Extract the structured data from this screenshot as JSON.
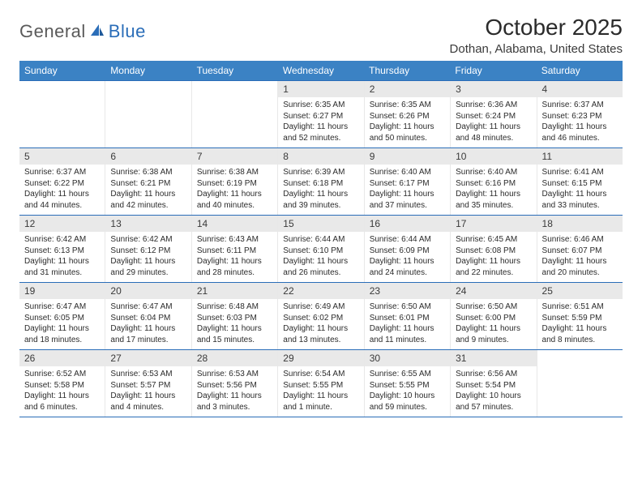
{
  "logo": {
    "text1": "General",
    "text2": "Blue"
  },
  "title": "October 2025",
  "location": "Dothan, Alabama, United States",
  "colors": {
    "header_bg": "#3b82c4",
    "header_border": "#2a6db8",
    "daynum_bg": "#e9e9e9",
    "text": "#2b2b2b"
  },
  "daysOfWeek": [
    "Sunday",
    "Monday",
    "Tuesday",
    "Wednesday",
    "Thursday",
    "Friday",
    "Saturday"
  ],
  "weeks": [
    [
      null,
      null,
      null,
      {
        "n": "1",
        "sr": "Sunrise: 6:35 AM",
        "ss": "Sunset: 6:27 PM",
        "dl": "Daylight: 11 hours and 52 minutes."
      },
      {
        "n": "2",
        "sr": "Sunrise: 6:35 AM",
        "ss": "Sunset: 6:26 PM",
        "dl": "Daylight: 11 hours and 50 minutes."
      },
      {
        "n": "3",
        "sr": "Sunrise: 6:36 AM",
        "ss": "Sunset: 6:24 PM",
        "dl": "Daylight: 11 hours and 48 minutes."
      },
      {
        "n": "4",
        "sr": "Sunrise: 6:37 AM",
        "ss": "Sunset: 6:23 PM",
        "dl": "Daylight: 11 hours and 46 minutes."
      }
    ],
    [
      {
        "n": "5",
        "sr": "Sunrise: 6:37 AM",
        "ss": "Sunset: 6:22 PM",
        "dl": "Daylight: 11 hours and 44 minutes."
      },
      {
        "n": "6",
        "sr": "Sunrise: 6:38 AM",
        "ss": "Sunset: 6:21 PM",
        "dl": "Daylight: 11 hours and 42 minutes."
      },
      {
        "n": "7",
        "sr": "Sunrise: 6:38 AM",
        "ss": "Sunset: 6:19 PM",
        "dl": "Daylight: 11 hours and 40 minutes."
      },
      {
        "n": "8",
        "sr": "Sunrise: 6:39 AM",
        "ss": "Sunset: 6:18 PM",
        "dl": "Daylight: 11 hours and 39 minutes."
      },
      {
        "n": "9",
        "sr": "Sunrise: 6:40 AM",
        "ss": "Sunset: 6:17 PM",
        "dl": "Daylight: 11 hours and 37 minutes."
      },
      {
        "n": "10",
        "sr": "Sunrise: 6:40 AM",
        "ss": "Sunset: 6:16 PM",
        "dl": "Daylight: 11 hours and 35 minutes."
      },
      {
        "n": "11",
        "sr": "Sunrise: 6:41 AM",
        "ss": "Sunset: 6:15 PM",
        "dl": "Daylight: 11 hours and 33 minutes."
      }
    ],
    [
      {
        "n": "12",
        "sr": "Sunrise: 6:42 AM",
        "ss": "Sunset: 6:13 PM",
        "dl": "Daylight: 11 hours and 31 minutes."
      },
      {
        "n": "13",
        "sr": "Sunrise: 6:42 AM",
        "ss": "Sunset: 6:12 PM",
        "dl": "Daylight: 11 hours and 29 minutes."
      },
      {
        "n": "14",
        "sr": "Sunrise: 6:43 AM",
        "ss": "Sunset: 6:11 PM",
        "dl": "Daylight: 11 hours and 28 minutes."
      },
      {
        "n": "15",
        "sr": "Sunrise: 6:44 AM",
        "ss": "Sunset: 6:10 PM",
        "dl": "Daylight: 11 hours and 26 minutes."
      },
      {
        "n": "16",
        "sr": "Sunrise: 6:44 AM",
        "ss": "Sunset: 6:09 PM",
        "dl": "Daylight: 11 hours and 24 minutes."
      },
      {
        "n": "17",
        "sr": "Sunrise: 6:45 AM",
        "ss": "Sunset: 6:08 PM",
        "dl": "Daylight: 11 hours and 22 minutes."
      },
      {
        "n": "18",
        "sr": "Sunrise: 6:46 AM",
        "ss": "Sunset: 6:07 PM",
        "dl": "Daylight: 11 hours and 20 minutes."
      }
    ],
    [
      {
        "n": "19",
        "sr": "Sunrise: 6:47 AM",
        "ss": "Sunset: 6:05 PM",
        "dl": "Daylight: 11 hours and 18 minutes."
      },
      {
        "n": "20",
        "sr": "Sunrise: 6:47 AM",
        "ss": "Sunset: 6:04 PM",
        "dl": "Daylight: 11 hours and 17 minutes."
      },
      {
        "n": "21",
        "sr": "Sunrise: 6:48 AM",
        "ss": "Sunset: 6:03 PM",
        "dl": "Daylight: 11 hours and 15 minutes."
      },
      {
        "n": "22",
        "sr": "Sunrise: 6:49 AM",
        "ss": "Sunset: 6:02 PM",
        "dl": "Daylight: 11 hours and 13 minutes."
      },
      {
        "n": "23",
        "sr": "Sunrise: 6:50 AM",
        "ss": "Sunset: 6:01 PM",
        "dl": "Daylight: 11 hours and 11 minutes."
      },
      {
        "n": "24",
        "sr": "Sunrise: 6:50 AM",
        "ss": "Sunset: 6:00 PM",
        "dl": "Daylight: 11 hours and 9 minutes."
      },
      {
        "n": "25",
        "sr": "Sunrise: 6:51 AM",
        "ss": "Sunset: 5:59 PM",
        "dl": "Daylight: 11 hours and 8 minutes."
      }
    ],
    [
      {
        "n": "26",
        "sr": "Sunrise: 6:52 AM",
        "ss": "Sunset: 5:58 PM",
        "dl": "Daylight: 11 hours and 6 minutes."
      },
      {
        "n": "27",
        "sr": "Sunrise: 6:53 AM",
        "ss": "Sunset: 5:57 PM",
        "dl": "Daylight: 11 hours and 4 minutes."
      },
      {
        "n": "28",
        "sr": "Sunrise: 6:53 AM",
        "ss": "Sunset: 5:56 PM",
        "dl": "Daylight: 11 hours and 3 minutes."
      },
      {
        "n": "29",
        "sr": "Sunrise: 6:54 AM",
        "ss": "Sunset: 5:55 PM",
        "dl": "Daylight: 11 hours and 1 minute."
      },
      {
        "n": "30",
        "sr": "Sunrise: 6:55 AM",
        "ss": "Sunset: 5:55 PM",
        "dl": "Daylight: 10 hours and 59 minutes."
      },
      {
        "n": "31",
        "sr": "Sunrise: 6:56 AM",
        "ss": "Sunset: 5:54 PM",
        "dl": "Daylight: 10 hours and 57 minutes."
      },
      null
    ]
  ]
}
